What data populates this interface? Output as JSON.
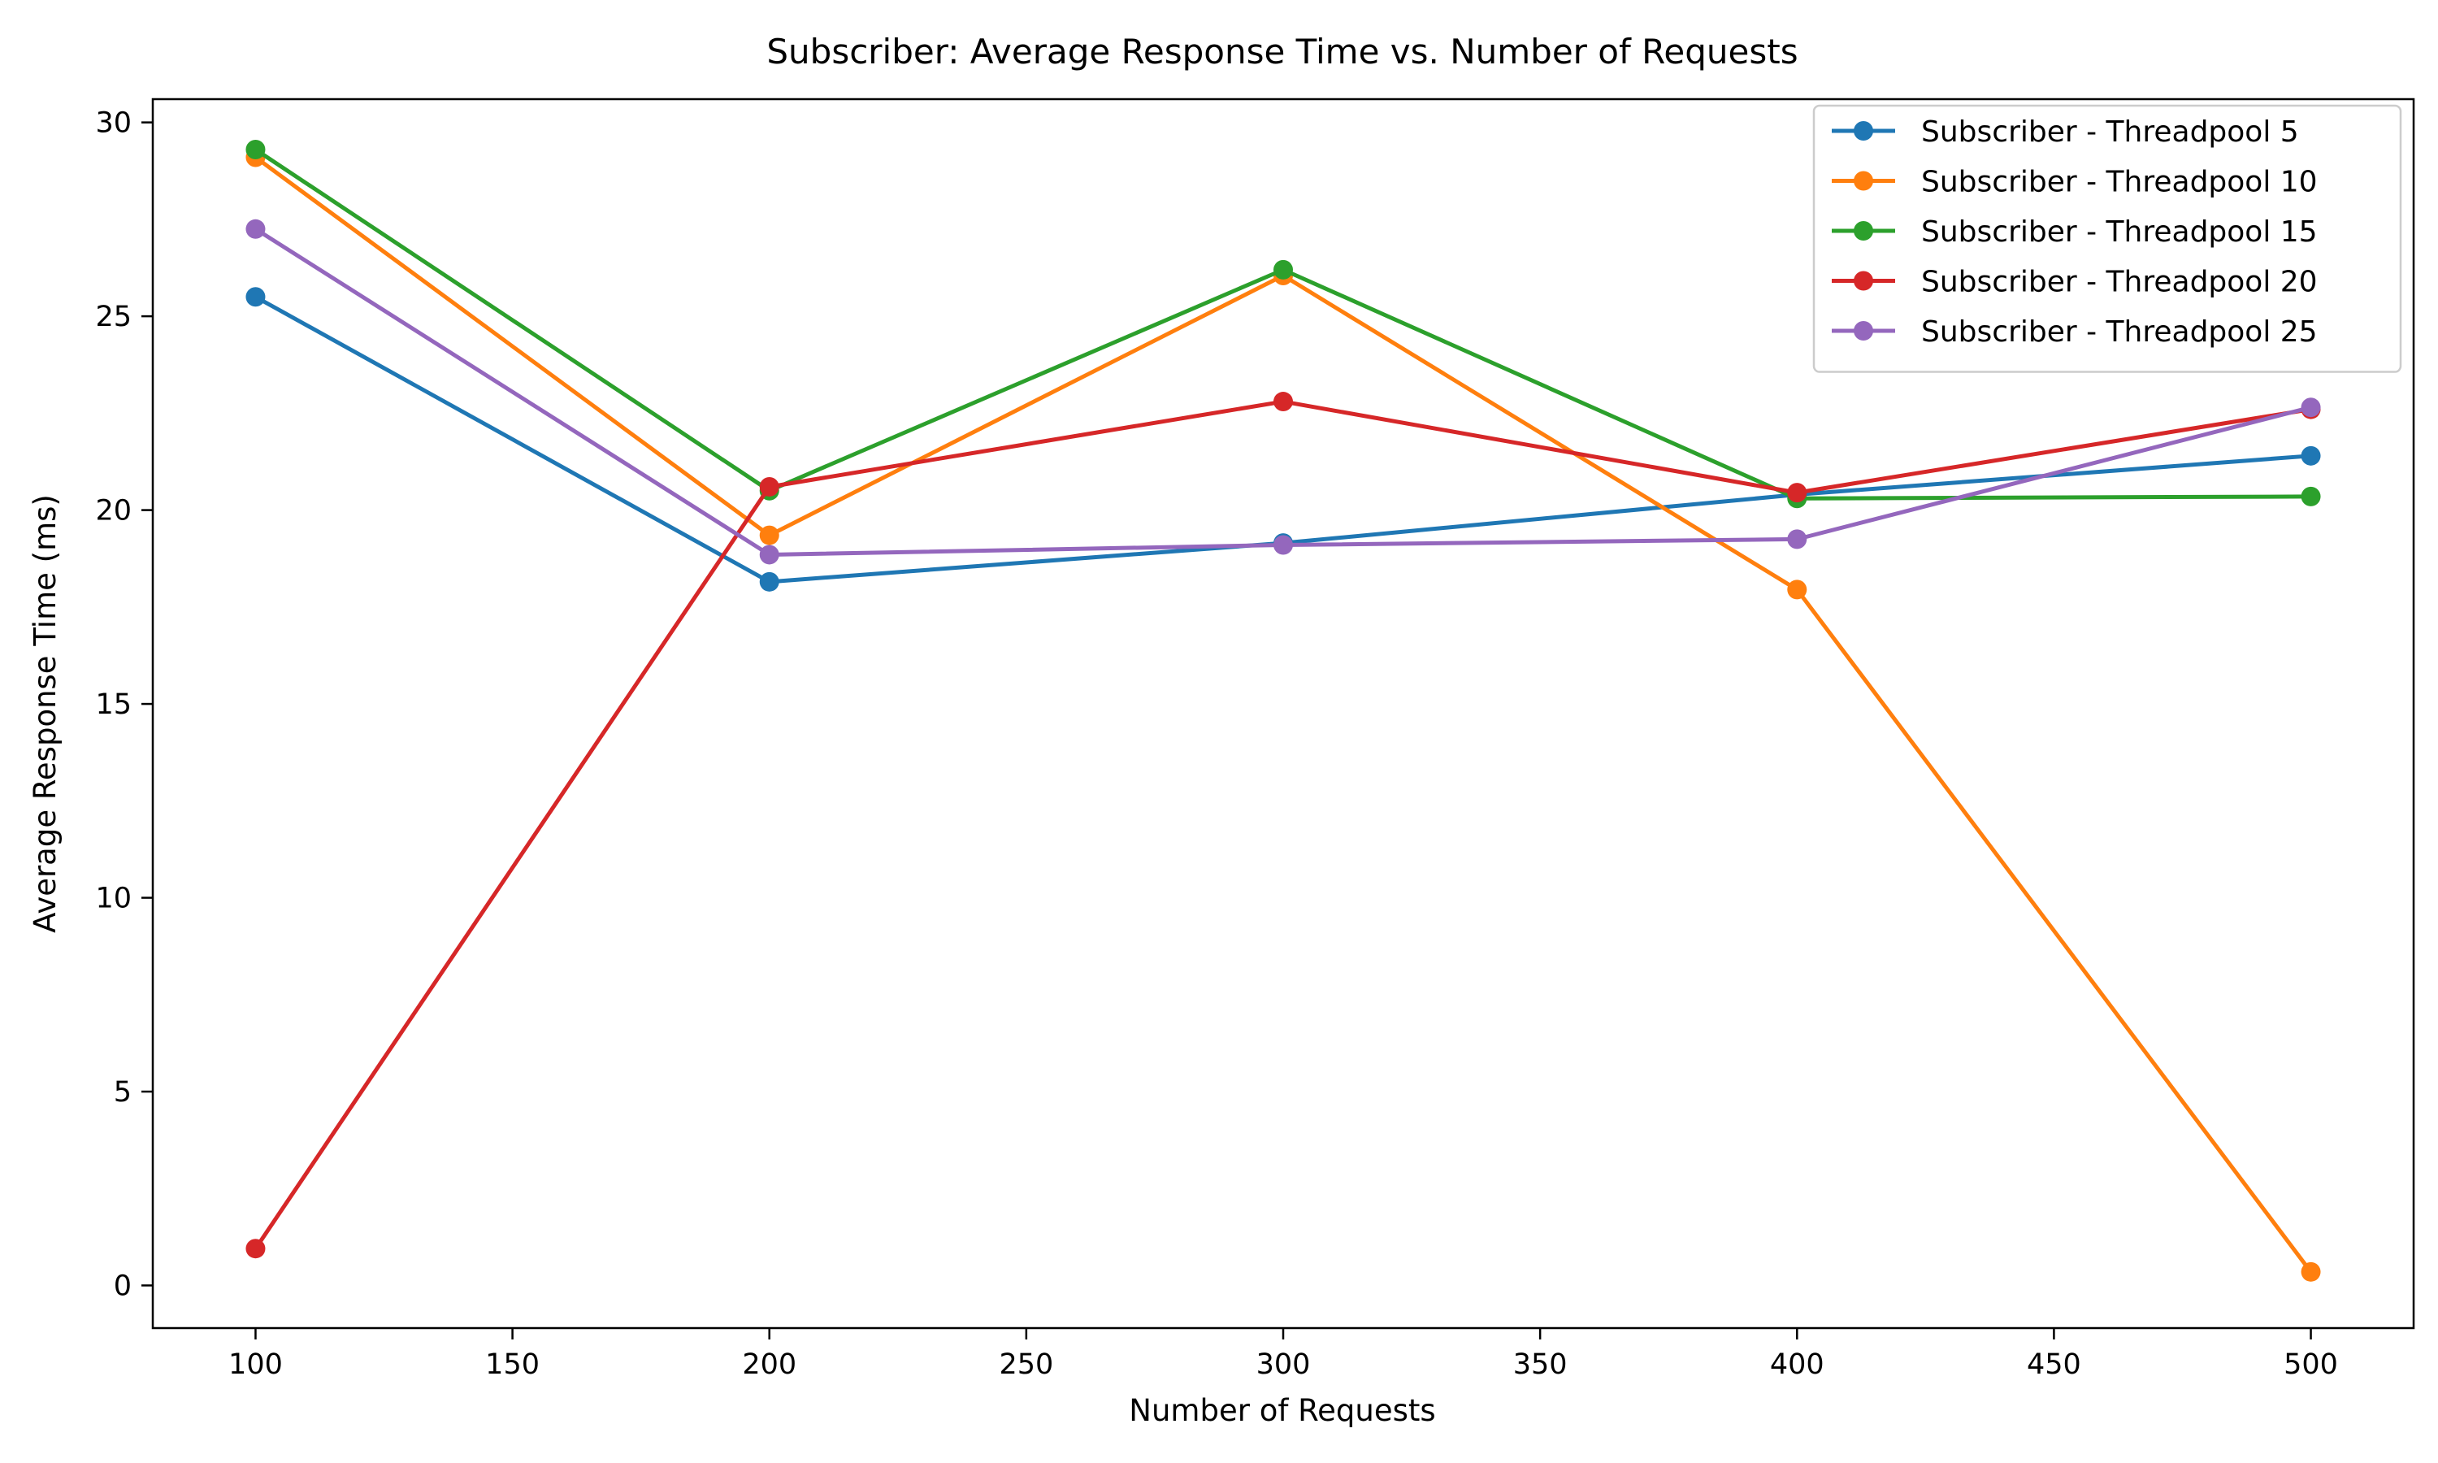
{
  "chart_data": {
    "type": "line",
    "title": "Subscriber: Average Response Time vs. Number of Requests",
    "xlabel": "Number of Requests",
    "ylabel": "Average Response Time (ms)",
    "xlim": [
      80,
      520
    ],
    "ylim": [
      -1.1,
      30.6
    ],
    "xticks": [
      100,
      150,
      200,
      250,
      300,
      350,
      400,
      450,
      500
    ],
    "yticks": [
      0,
      5,
      10,
      15,
      20,
      25,
      30
    ],
    "grid": false,
    "legend_position": "top-right",
    "x": [
      100,
      200,
      300,
      400,
      500
    ],
    "series": [
      {
        "name": "Subscriber - Threadpool 5",
        "color": "#1f77b4",
        "values": [
          25.5,
          18.15,
          19.15,
          20.4,
          21.4
        ]
      },
      {
        "name": "Subscriber - Threadpool 10",
        "color": "#ff7f0e",
        "values": [
          29.1,
          19.35,
          26.05,
          17.95,
          0.35
        ]
      },
      {
        "name": "Subscriber - Threadpool 15",
        "color": "#2ca02c",
        "values": [
          29.3,
          20.5,
          26.2,
          20.3,
          20.35
        ]
      },
      {
        "name": "Subscriber - Threadpool 20",
        "color": "#d62728",
        "values": [
          0.95,
          20.6,
          22.8,
          20.45,
          22.6
        ]
      },
      {
        "name": "Subscriber - Threadpool 25",
        "color": "#9467bd",
        "values": [
          27.25,
          18.85,
          19.1,
          19.25,
          22.65
        ]
      }
    ]
  }
}
